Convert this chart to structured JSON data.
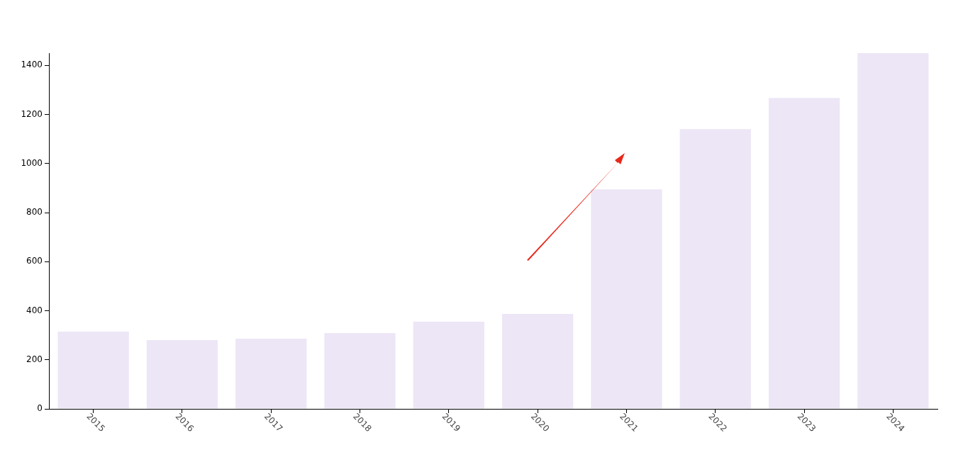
{
  "chart_data": {
    "type": "bar",
    "categories": [
      "2015",
      "2016",
      "2017",
      "2018",
      "2019",
      "2020",
      "2021",
      "2022",
      "2023",
      "2024"
    ],
    "values": [
      315,
      280,
      286,
      309,
      355,
      387,
      895,
      1140,
      1267,
      1450
    ],
    "color": "#ede6f6",
    "ylim": [
      0,
      1450
    ],
    "yticks": [
      0,
      200,
      400,
      600,
      800,
      1000,
      1200,
      1400
    ],
    "grid": false,
    "legend": false
  }
}
